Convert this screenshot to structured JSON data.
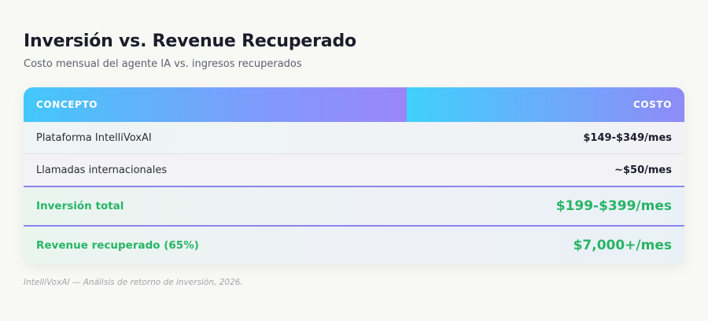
{
  "header": {
    "title": "Inversión vs. Revenue Recuperado",
    "subtitle": "Costo mensual del agente IA vs. ingresos recuperados"
  },
  "table": {
    "columns": [
      "CONCEPTO",
      "COSTO"
    ],
    "rows": [
      {
        "concept": "Plataforma IntelliVoxAI",
        "cost": "$149-$349/mes"
      },
      {
        "concept": "Llamadas internacionales",
        "cost": "~$50/mes"
      },
      {
        "concept": "Inversión total",
        "cost": "$199-$399/mes"
      },
      {
        "concept": "Revenue recuperado (65%)",
        "cost": "$7,000+/mes"
      }
    ]
  },
  "footnote": "IntelliVoxAI — Análisis de retorno de inversión, 2026.",
  "colors": {
    "accent_green": "#27b566",
    "header_gradient_start": "#43c8fb",
    "header_gradient_end": "#9a86f7",
    "divider_purple": "#8b84ee"
  }
}
